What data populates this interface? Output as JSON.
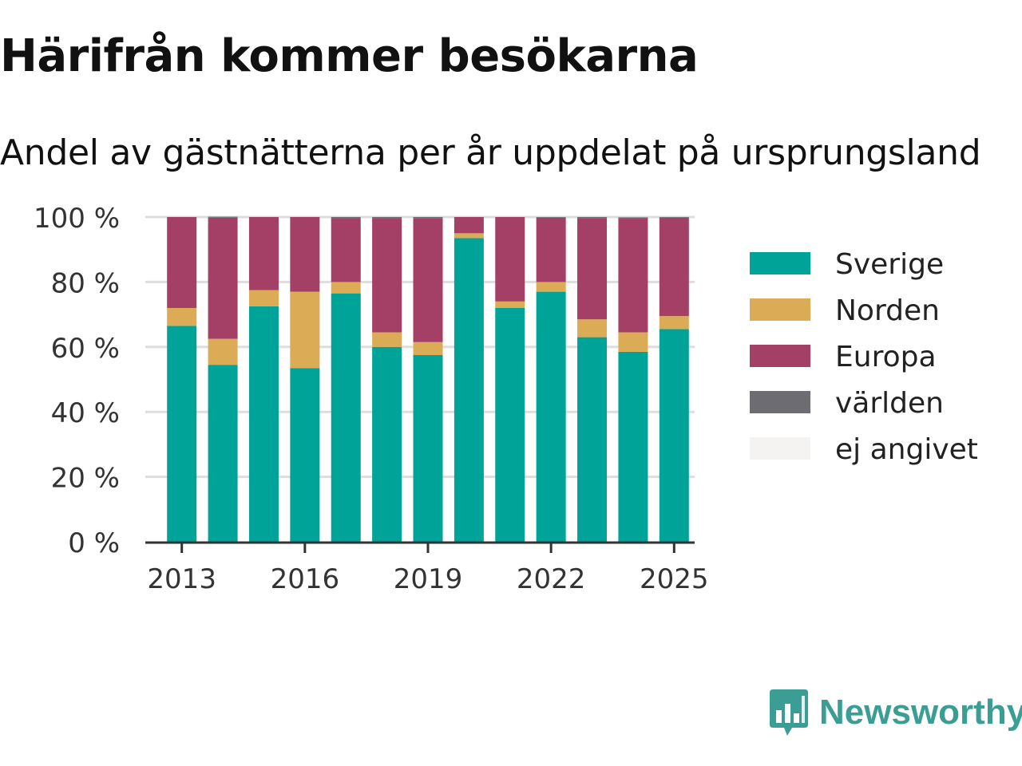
{
  "title": "Härifrån kommer besökarna",
  "subtitle": "Andel av gästnätterna per år uppdelat på ursprungsland",
  "brand": {
    "name": "Newsworthy",
    "color": "#3a9e95",
    "icon": "bar-chart-speech-bubble-icon"
  },
  "chart_data": {
    "type": "bar",
    "stacked": true,
    "categories": [
      "2013",
      "2014",
      "2015",
      "2016",
      "2017",
      "2018",
      "2019",
      "2020",
      "2021",
      "2022",
      "2023",
      "2024",
      "2025"
    ],
    "x_tick_labels": [
      "2013",
      "2016",
      "2019",
      "2022",
      "2025"
    ],
    "y_tick_labels": [
      "0 %",
      "20 %",
      "40 %",
      "60 %",
      "80 %",
      "100 %"
    ],
    "ylim": [
      0,
      100
    ],
    "grid": true,
    "legend_position": "right",
    "series": [
      {
        "name": "Sverige",
        "color": "#00a398",
        "values": [
          66.5,
          54.5,
          72.5,
          53.5,
          76.5,
          60,
          57.5,
          93.5,
          72,
          77,
          63,
          58.5,
          65.5
        ]
      },
      {
        "name": "Norden",
        "color": "#dcab56",
        "values": [
          5.5,
          8,
          5,
          23.5,
          3.5,
          4.5,
          4,
          1.5,
          2,
          3,
          5.5,
          6,
          4
        ]
      },
      {
        "name": "Europa",
        "color": "#a43f66",
        "values": [
          28,
          37.3,
          22.5,
          23,
          19.5,
          35,
          38.2,
          5,
          26,
          19.8,
          31.2,
          35,
          30.3
        ]
      },
      {
        "name": "världen",
        "color": "#6d6c72",
        "values": [
          0,
          0.3,
          0,
          0,
          0.5,
          0.5,
          0.3,
          0,
          0,
          0.2,
          0.3,
          0.4,
          0.2
        ]
      },
      {
        "name": "ej angivet",
        "color": "#f4f3f1",
        "values": [
          0,
          0,
          0,
          0,
          0,
          0,
          0,
          0,
          0,
          0,
          0,
          0,
          0
        ]
      }
    ]
  }
}
